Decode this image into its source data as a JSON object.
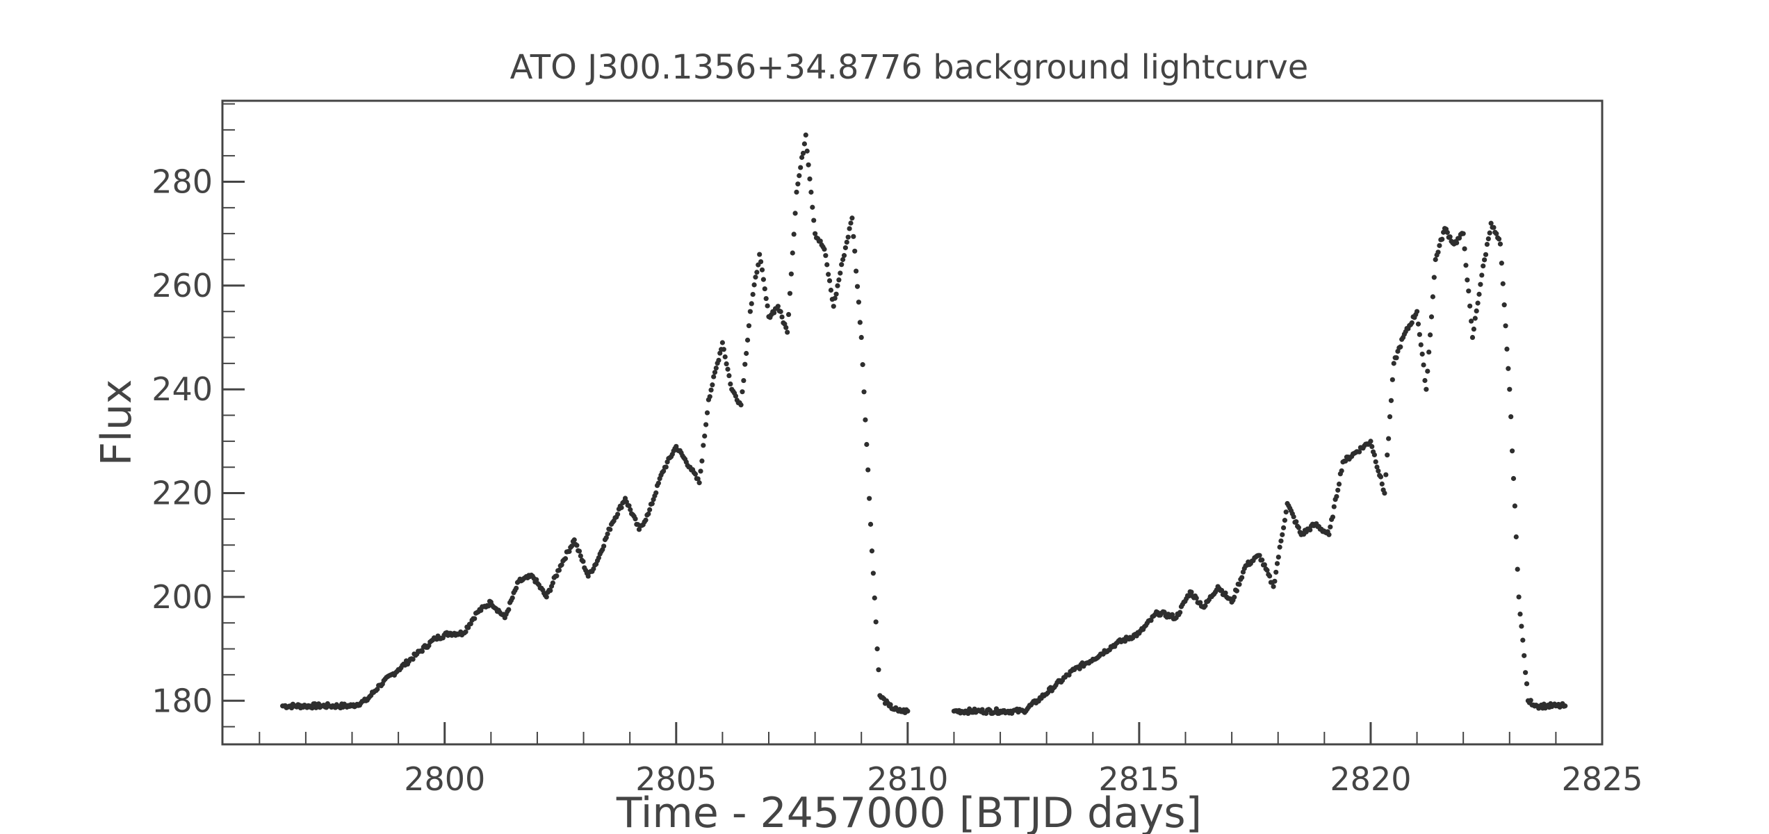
{
  "chart_data": {
    "type": "scatter",
    "title": "ATO J300.1356+34.8776 background lightcurve",
    "xlabel": "Time - 2457000 [BTJD days]",
    "ylabel": "Flux",
    "xlim": [
      2795.2,
      2825.0
    ],
    "ylim": [
      171.6,
      295.6
    ],
    "x_ticks": [
      2800,
      2805,
      2810,
      2815,
      2820,
      2825
    ],
    "y_ticks": [
      180,
      200,
      220,
      240,
      260,
      280
    ],
    "grid": false,
    "legend": "none",
    "marker_color": "#2e2e2e",
    "series": [
      {
        "x": [
          2796.5,
          2797.0,
          2797.5,
          2798.0,
          2798.3,
          2798.6,
          2799.0,
          2799.4,
          2799.8,
          2800.1,
          2800.4,
          2800.7,
          2801.0,
          2801.3,
          2801.6,
          2801.9,
          2802.2,
          2802.5,
          2802.8,
          2803.1,
          2803.3,
          2803.6,
          2803.9,
          2804.2,
          2804.4,
          2804.7,
          2805.0,
          2805.3,
          2805.5,
          2805.7,
          2806.0,
          2806.2,
          2806.4,
          2806.6,
          2806.8,
          2807.0,
          2807.2,
          2807.4,
          2807.6,
          2807.8,
          2808.0,
          2808.2,
          2808.4,
          2808.6,
          2808.8,
          2809.0,
          2809.2,
          2809.4,
          2809.6,
          2809.8,
          2810.0
        ],
        "y": [
          179,
          179,
          179,
          179,
          180,
          183,
          186,
          189,
          192,
          193,
          193,
          197,
          199,
          196,
          203,
          204,
          200,
          206,
          211,
          204,
          207,
          214,
          219,
          213,
          216,
          224,
          229,
          225,
          222,
          238,
          249,
          240,
          237,
          255,
          266,
          254,
          256,
          251,
          278,
          289,
          270,
          267,
          256,
          265,
          273,
          250,
          214,
          181,
          179,
          178,
          178
        ]
      },
      {
        "x": [
          2811.0,
          2811.5,
          2812.0,
          2812.5,
          2812.8,
          2813.2,
          2813.6,
          2814.0,
          2814.5,
          2815.0,
          2815.4,
          2815.8,
          2816.1,
          2816.4,
          2816.7,
          2817.0,
          2817.3,
          2817.6,
          2817.9,
          2818.2,
          2818.5,
          2818.8,
          2819.1,
          2819.4,
          2819.7,
          2820.0,
          2820.3,
          2820.5,
          2820.7,
          2821.0,
          2821.2,
          2821.4,
          2821.6,
          2821.8,
          2822.0,
          2822.2,
          2822.4,
          2822.6,
          2822.8,
          2823.0,
          2823.2,
          2823.4,
          2823.6,
          2823.8,
          2824.0,
          2824.2
        ],
        "y": [
          178,
          178,
          178,
          178,
          180,
          183,
          186,
          188,
          191,
          193,
          197,
          196,
          201,
          198,
          202,
          199,
          206,
          208,
          202,
          218,
          212,
          214,
          212,
          226,
          228,
          230,
          220,
          245,
          250,
          255,
          240,
          265,
          271,
          268,
          270,
          250,
          262,
          272,
          268,
          240,
          200,
          180,
          179,
          179,
          179,
          179
        ]
      }
    ]
  }
}
